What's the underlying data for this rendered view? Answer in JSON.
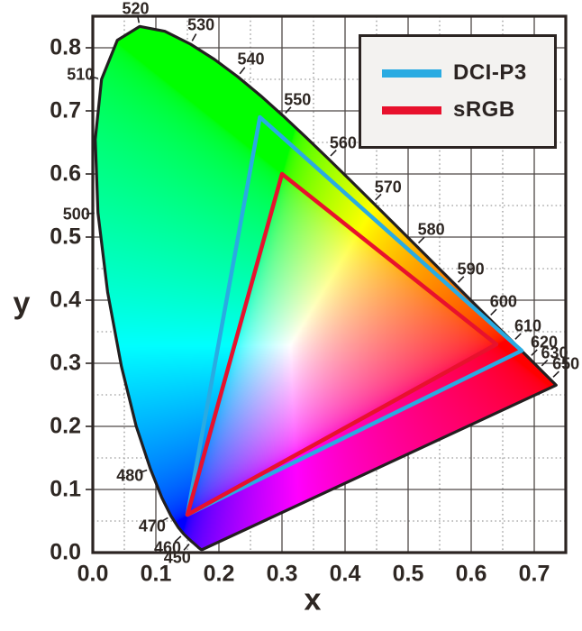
{
  "figure": {
    "background": "#ffffff",
    "colors": {
      "text": "#2e2723",
      "frame": "#2b2422",
      "grid_major": "#4e4846",
      "grid_minor": "#848484",
      "locus_outline": "#231f20",
      "legend_background": "#f3f2f0"
    }
  },
  "legend": {
    "items": [
      {
        "label": "DCI-P3",
        "color": "#29abe2"
      },
      {
        "label": "sRGB",
        "color": "#e8112d"
      }
    ]
  },
  "chart_data": {
    "type": "chromaticity-diagram",
    "title": "",
    "xlabel": "x",
    "ylabel": "y",
    "xlim": [
      0,
      0.75
    ],
    "ylim": [
      0,
      0.85
    ],
    "grid": {
      "major_step": 0.1,
      "minor_step": 0.05,
      "minor_style": "dotted"
    },
    "legend_position": "top-right",
    "x_tick_labels": [
      "0.0",
      "0.1",
      "0.2",
      "0.3",
      "0.4",
      "0.5",
      "0.6",
      "0.7"
    ],
    "y_tick_labels": [
      "0.0",
      "0.1",
      "0.2",
      "0.3",
      "0.4",
      "0.5",
      "0.6",
      "0.7",
      "0.8"
    ],
    "labeled_wavelengths": [
      450,
      460,
      470,
      480,
      500,
      510,
      520,
      530,
      540,
      550,
      560,
      570,
      580,
      590,
      600,
      610,
      620,
      630,
      650
    ],
    "spectral_locus": [
      [
        380,
        0.1741,
        0.005
      ],
      [
        385,
        0.174,
        0.005
      ],
      [
        390,
        0.1738,
        0.0049
      ],
      [
        395,
        0.1736,
        0.0049
      ],
      [
        400,
        0.1733,
        0.0048
      ],
      [
        405,
        0.173,
        0.0048
      ],
      [
        410,
        0.1726,
        0.0048
      ],
      [
        415,
        0.1721,
        0.0048
      ],
      [
        420,
        0.1714,
        0.0051
      ],
      [
        425,
        0.1703,
        0.0058
      ],
      [
        430,
        0.1689,
        0.0069
      ],
      [
        435,
        0.1669,
        0.0086
      ],
      [
        440,
        0.1644,
        0.0109
      ],
      [
        445,
        0.1611,
        0.0138
      ],
      [
        450,
        0.1566,
        0.0177
      ],
      [
        455,
        0.151,
        0.0227
      ],
      [
        460,
        0.144,
        0.0297
      ],
      [
        465,
        0.1355,
        0.0399
      ],
      [
        470,
        0.1241,
        0.0578
      ],
      [
        475,
        0.1096,
        0.0868
      ],
      [
        480,
        0.0913,
        0.1327
      ],
      [
        485,
        0.0687,
        0.2007
      ],
      [
        490,
        0.0454,
        0.295
      ],
      [
        495,
        0.0235,
        0.4127
      ],
      [
        500,
        0.0082,
        0.5384
      ],
      [
        505,
        0.0039,
        0.6548
      ],
      [
        510,
        0.0139,
        0.7502
      ],
      [
        515,
        0.0389,
        0.812
      ],
      [
        520,
        0.0743,
        0.8338
      ],
      [
        525,
        0.1142,
        0.8262
      ],
      [
        530,
        0.1547,
        0.8059
      ],
      [
        535,
        0.1929,
        0.7816
      ],
      [
        540,
        0.2296,
        0.7543
      ],
      [
        545,
        0.2658,
        0.7243
      ],
      [
        550,
        0.3016,
        0.6923
      ],
      [
        555,
        0.3373,
        0.6589
      ],
      [
        560,
        0.3731,
        0.6245
      ],
      [
        565,
        0.4087,
        0.5896
      ],
      [
        570,
        0.4441,
        0.5547
      ],
      [
        575,
        0.4788,
        0.5202
      ],
      [
        580,
        0.5125,
        0.4866
      ],
      [
        585,
        0.5448,
        0.4544
      ],
      [
        590,
        0.5752,
        0.4242
      ],
      [
        595,
        0.6029,
        0.3965
      ],
      [
        600,
        0.627,
        0.3725
      ],
      [
        605,
        0.6482,
        0.3514
      ],
      [
        610,
        0.6658,
        0.334
      ],
      [
        615,
        0.6801,
        0.3197
      ],
      [
        620,
        0.6915,
        0.3083
      ],
      [
        625,
        0.7006,
        0.2993
      ],
      [
        630,
        0.7079,
        0.292
      ],
      [
        635,
        0.714,
        0.2859
      ],
      [
        640,
        0.719,
        0.2809
      ],
      [
        645,
        0.723,
        0.277
      ],
      [
        650,
        0.726,
        0.274
      ],
      [
        660,
        0.73,
        0.27
      ],
      [
        670,
        0.732,
        0.268
      ],
      [
        680,
        0.7334,
        0.2666
      ],
      [
        690,
        0.7344,
        0.2656
      ],
      [
        700,
        0.7347,
        0.2653
      ]
    ],
    "series": [
      {
        "name": "DCI-P3",
        "color": "#29abe2",
        "vertices": [
          [
            0.68,
            0.32
          ],
          [
            0.265,
            0.69
          ],
          [
            0.15,
            0.06
          ]
        ]
      },
      {
        "name": "sRGB",
        "color": "#e8112d",
        "vertices": [
          [
            0.64,
            0.33
          ],
          [
            0.3,
            0.6
          ],
          [
            0.15,
            0.06
          ]
        ]
      }
    ]
  }
}
